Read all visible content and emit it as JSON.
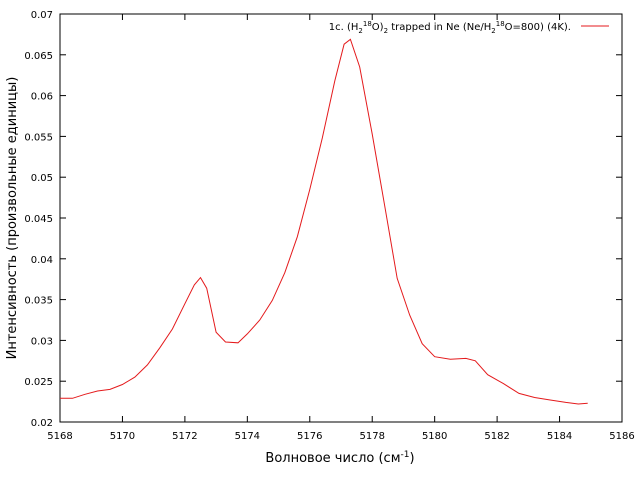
{
  "chart_data": {
    "type": "line",
    "xlabel": "Волновое число (см",
    "xlabel_sup": "-1",
    "xlabel_end": ")",
    "ylabel": "Интенсивность (произвольные единицы)",
    "xlim": [
      5168,
      5186
    ],
    "ylim": [
      0.02,
      0.07
    ],
    "x_ticks": [
      5168,
      5170,
      5172,
      5174,
      5176,
      5178,
      5180,
      5182,
      5184,
      5186
    ],
    "y_ticks": [
      0.02,
      0.025,
      0.03,
      0.035,
      0.04,
      0.045,
      0.05,
      0.055,
      0.06,
      0.065,
      0.07
    ],
    "x_tick_labels": [
      "5168",
      "5170",
      "5172",
      "5174",
      "5176",
      "5178",
      "5180",
      "5182",
      "5184",
      "5186"
    ],
    "y_tick_labels": [
      "0.02",
      "0.025",
      "0.03",
      "0.035",
      "0.04",
      "0.045",
      "0.05",
      "0.055",
      "0.06",
      "0.065",
      "0.07"
    ],
    "grid": false,
    "legend_position": "top-right",
    "series": [
      {
        "name": "1c. (H218O)2 trapped in Ne (Ne/H218O=800) (4K).",
        "legend_parts": [
          "1c. (H",
          "2",
          "18",
          "O)",
          "2",
          " trapped in Ne (Ne/H",
          "2",
          "18",
          "O=800) (4K)."
        ],
        "color": "#e41a1c",
        "x": [
          5168.0,
          5168.4,
          5168.8,
          5169.2,
          5169.6,
          5170.0,
          5170.4,
          5170.8,
          5171.2,
          5171.6,
          5172.0,
          5172.3,
          5172.5,
          5172.7,
          5173.0,
          5173.3,
          5173.7,
          5174.0,
          5174.4,
          5174.8,
          5175.2,
          5175.6,
          5176.0,
          5176.4,
          5176.8,
          5177.1,
          5177.3,
          5177.6,
          5178.0,
          5178.4,
          5178.8,
          5179.2,
          5179.6,
          5180.0,
          5180.5,
          5181.0,
          5181.3,
          5181.7,
          5182.2,
          5182.7,
          5183.2,
          5183.7,
          5184.2,
          5184.6,
          5184.9
        ],
        "y": [
          0.0229,
          0.0229,
          0.0234,
          0.0238,
          0.024,
          0.0246,
          0.0255,
          0.027,
          0.0291,
          0.0314,
          0.0345,
          0.0368,
          0.0377,
          0.0364,
          0.031,
          0.0298,
          0.0297,
          0.0308,
          0.0325,
          0.0349,
          0.0383,
          0.0427,
          0.0485,
          0.0548,
          0.0618,
          0.0663,
          0.0669,
          0.0635,
          0.0553,
          0.0465,
          0.0376,
          0.0331,
          0.0296,
          0.028,
          0.0277,
          0.0278,
          0.0275,
          0.0258,
          0.0247,
          0.0235,
          0.023,
          0.0227,
          0.0224,
          0.0222,
          0.0223
        ]
      }
    ]
  }
}
